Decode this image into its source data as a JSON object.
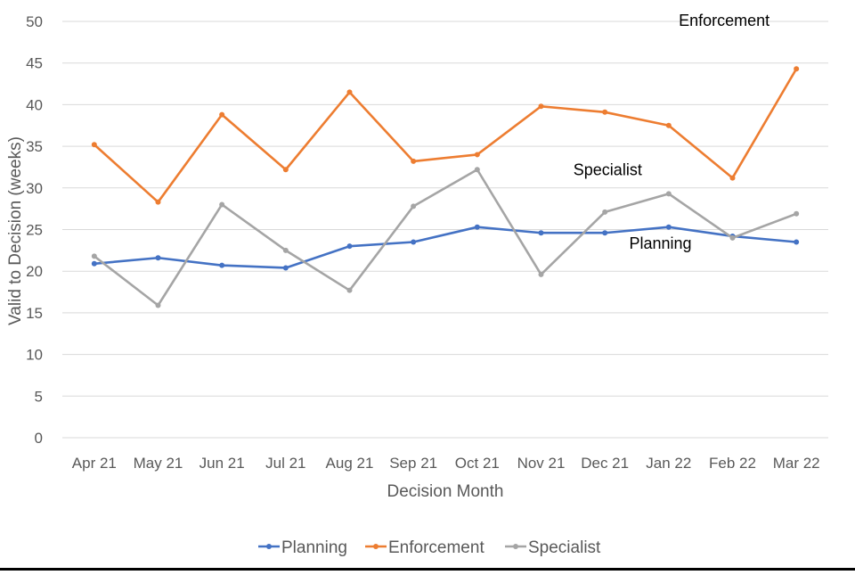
{
  "chart_data": {
    "type": "line",
    "title": "",
    "xlabel": "Decision Month",
    "ylabel": "Valid to Decision (weeks)",
    "ylim": [
      0,
      50
    ],
    "yticks": [
      0,
      5,
      10,
      15,
      20,
      25,
      30,
      35,
      40,
      45,
      50
    ],
    "grid": true,
    "legend_position": "bottom",
    "categories": [
      "Apr 21",
      "May 21",
      "Jun 21",
      "Jul 21",
      "Aug 21",
      "Sep 21",
      "Oct 21",
      "Nov 21",
      "Dec 21",
      "Jan 22",
      "Feb 22",
      "Mar 22"
    ],
    "series": [
      {
        "name": "Planning",
        "color": "#4472c4",
        "values": [
          20.9,
          21.6,
          20.7,
          20.4,
          23.0,
          23.5,
          25.3,
          24.6,
          24.6,
          25.3,
          24.2,
          23.5
        ]
      },
      {
        "name": "Enforcement",
        "color": "#ed7d31",
        "values": [
          35.2,
          28.3,
          38.8,
          32.2,
          41.5,
          33.2,
          34.0,
          39.8,
          39.1,
          37.5,
          31.2,
          44.3
        ]
      },
      {
        "name": "Specialist",
        "color": "#a5a5a5",
        "values": [
          21.8,
          15.9,
          28.0,
          22.5,
          17.7,
          27.8,
          32.2,
          19.6,
          27.1,
          29.3,
          24.0,
          26.9
        ]
      }
    ],
    "annotations": [
      {
        "text": "Enforcement",
        "series": "Enforcement"
      },
      {
        "text": "Specialist",
        "series": "Specialist"
      },
      {
        "text": "Planning",
        "series": "Planning"
      }
    ]
  }
}
